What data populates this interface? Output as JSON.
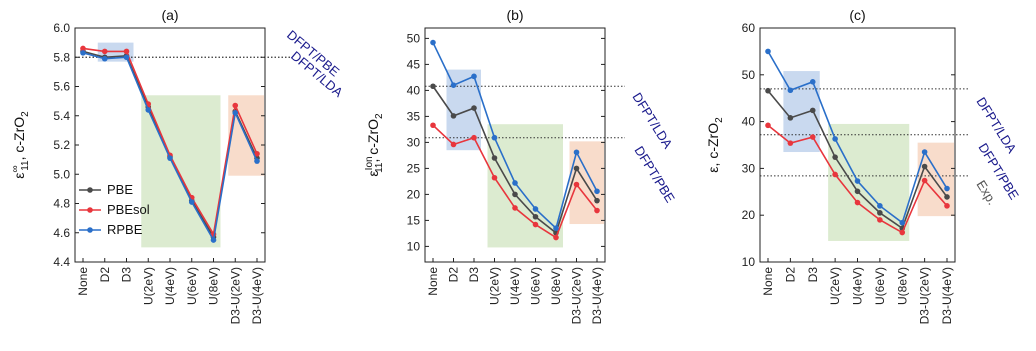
{
  "chart_data": [
    {
      "type": "line",
      "title": "(a)",
      "ylabel": "ε∞₁₁, c-ZrO₂",
      "ylabel_main": "ε",
      "ylabel_sup": "∞",
      "ylabel_sub": "11",
      "ylabel_rest": ", c-ZrO",
      "ylabel_sub2": "2",
      "categories": [
        "None",
        "D2",
        "D3",
        "U(2eV)",
        "U(4eV)",
        "U(6eV)",
        "U(8eV)",
        "D3-U(2eV)",
        "D3-U(4eV)"
      ],
      "ylim": [
        4.4,
        6.0
      ],
      "yticks": [
        "4.4",
        "4.6",
        "4.8",
        "5.0",
        "5.2",
        "5.4",
        "5.6",
        "5.8",
        "6.0"
      ],
      "series": [
        {
          "name": "PBE",
          "color": "#4a4a4a",
          "values": [
            5.84,
            5.8,
            5.81,
            5.46,
            5.12,
            4.82,
            4.57,
            5.43,
            5.11
          ]
        },
        {
          "name": "PBEsol",
          "color": "#e8363d",
          "values": [
            5.86,
            5.84,
            5.84,
            5.48,
            5.13,
            4.84,
            4.59,
            5.47,
            5.14
          ]
        },
        {
          "name": "RPBE",
          "color": "#2a6fc9",
          "values": [
            5.83,
            5.79,
            5.8,
            5.44,
            5.11,
            4.81,
            4.55,
            5.42,
            5.09
          ]
        }
      ],
      "legend": {
        "placement": "bottom-left",
        "entries": [
          "PBE",
          "PBEsol",
          "RPBE"
        ]
      },
      "ref_lines": [
        {
          "label": "DFPT/PBE",
          "value": 5.8
        },
        {
          "label": "DFPT/LDA",
          "value": 5.8
        }
      ],
      "shaded": [
        {
          "from": "D2",
          "to": "D3",
          "ymin": 5.77,
          "ymax": 5.9,
          "color": "#c9d9ef"
        },
        {
          "from": "U(2eV)",
          "to": "U(8eV)",
          "ymin": 4.5,
          "ymax": 5.54,
          "color": "#dcebd0"
        },
        {
          "from": "D3-U(2eV)",
          "to": "D3-U(4eV)",
          "ymin": 4.99,
          "ymax": 5.54,
          "color": "#f8dccb"
        }
      ]
    },
    {
      "type": "line",
      "title": "(b)",
      "ylabel": "εIon₁₁, c-ZrO₂",
      "ylabel_main": "ε",
      "ylabel_sup": "Ion",
      "ylabel_sub": "11",
      "ylabel_rest": ", c-ZrO",
      "ylabel_sub2": "2",
      "categories": [
        "None",
        "D2",
        "D3",
        "U(2eV)",
        "U(4eV)",
        "U(6eV)",
        "U(8eV)",
        "D3-U(2eV)",
        "D3-U(4eV)"
      ],
      "ylim": [
        7,
        52
      ],
      "yticks": [
        "10",
        "15",
        "20",
        "25",
        "30",
        "35",
        "40",
        "45",
        "50"
      ],
      "series": [
        {
          "name": "PBE",
          "color": "#4a4a4a",
          "values": [
            40.8,
            35.1,
            36.6,
            27.0,
            20.0,
            15.7,
            12.6,
            25.0,
            18.8
          ]
        },
        {
          "name": "PBEsol",
          "color": "#e8363d",
          "values": [
            33.3,
            29.6,
            30.9,
            23.2,
            17.4,
            14.2,
            11.7,
            21.9,
            16.9
          ]
        },
        {
          "name": "RPBE",
          "color": "#2a6fc9",
          "values": [
            49.2,
            41.0,
            42.7,
            30.9,
            22.2,
            17.2,
            13.5,
            28.1,
            20.6
          ]
        }
      ],
      "ref_lines": [
        {
          "label": "DFPT/LDA",
          "value": 40.8
        },
        {
          "label": "DFPT/PBE",
          "value": 30.9
        }
      ],
      "shaded": [
        {
          "from": "D2",
          "to": "D3",
          "ymin": 28.5,
          "ymax": 44.0,
          "color": "#c9d9ef"
        },
        {
          "from": "U(2eV)",
          "to": "U(8eV)",
          "ymin": 9.8,
          "ymax": 33.5,
          "color": "#dcebd0"
        },
        {
          "from": "D3-U(2eV)",
          "to": "D3-U(4eV)",
          "ymin": 14.3,
          "ymax": 30.2,
          "color": "#f8dccb"
        }
      ]
    },
    {
      "type": "line",
      "title": "(c)",
      "ylabel": "ε, c-ZrO₂",
      "ylabel_main": "ε",
      "ylabel_sup": "",
      "ylabel_sub": "",
      "ylabel_rest": ", c-ZrO",
      "ylabel_sub2": "2",
      "categories": [
        "None",
        "D2",
        "D3",
        "U(2eV)",
        "U(4eV)",
        "U(6eV)",
        "U(8eV)",
        "D3-U(2eV)",
        "D3-U(4eV)"
      ],
      "ylim": [
        10,
        60
      ],
      "yticks": [
        "10",
        "20",
        "30",
        "40",
        "50",
        "60"
      ],
      "series": [
        {
          "name": "PBE",
          "color": "#4a4a4a",
          "values": [
            46.6,
            40.8,
            42.4,
            32.4,
            25.1,
            20.5,
            17.2,
            30.4,
            23.9
          ]
        },
        {
          "name": "PBEsol",
          "color": "#e8363d",
          "values": [
            39.2,
            35.4,
            36.7,
            28.7,
            22.7,
            19.0,
            16.3,
            27.4,
            22.0
          ]
        },
        {
          "name": "RPBE",
          "color": "#2a6fc9",
          "values": [
            55.0,
            46.7,
            48.5,
            36.3,
            27.3,
            22.0,
            18.4,
            33.5,
            25.7
          ]
        }
      ],
      "ref_lines": [
        {
          "label": "DFPT/LDA",
          "value": 47.0
        },
        {
          "label": "DFPT/PBE",
          "value": 37.2
        },
        {
          "label": "Exp.",
          "value": 28.4
        }
      ],
      "shaded": [
        {
          "from": "D2",
          "to": "D3",
          "ymin": 33.5,
          "ymax": 50.8,
          "color": "#c9d9ef"
        },
        {
          "from": "U(2eV)",
          "to": "U(8eV)",
          "ymin": 14.5,
          "ymax": 39.5,
          "color": "#dcebd0"
        },
        {
          "from": "D3-U(2eV)",
          "to": "D3-U(4eV)",
          "ymin": 19.8,
          "ymax": 35.5,
          "color": "#f8dccb"
        }
      ]
    }
  ]
}
